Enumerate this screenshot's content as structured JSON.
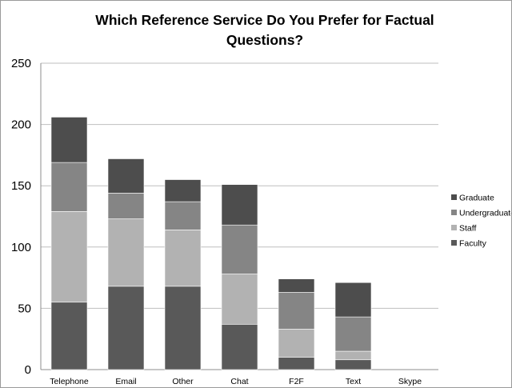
{
  "chart_data": {
    "type": "bar",
    "stacked": true,
    "title": "Which Reference Service Do You Prefer for Factual Questions?",
    "xlabel": "",
    "ylabel": "",
    "ylim": [
      0,
      250
    ],
    "yticks": [
      0,
      50,
      100,
      150,
      200,
      250
    ],
    "grid": true,
    "legend_position": "right",
    "categories": [
      "Telephone",
      "Email",
      "Other",
      "Chat",
      "F2F",
      "Text",
      "Skype"
    ],
    "series": [
      {
        "name": "Faculty",
        "color": "#595959",
        "values": [
          55,
          68,
          68,
          37,
          10,
          8,
          0
        ]
      },
      {
        "name": "Staff",
        "color": "#b2b2b2",
        "values": [
          74,
          55,
          46,
          41,
          23,
          7,
          0
        ]
      },
      {
        "name": "Undergraduate",
        "color": "#858585",
        "values": [
          40,
          21,
          23,
          40,
          30,
          28,
          0
        ]
      },
      {
        "name": "Graduate",
        "color": "#4d4d4d",
        "values": [
          37,
          28,
          18,
          33,
          11,
          28,
          0
        ]
      }
    ]
  }
}
